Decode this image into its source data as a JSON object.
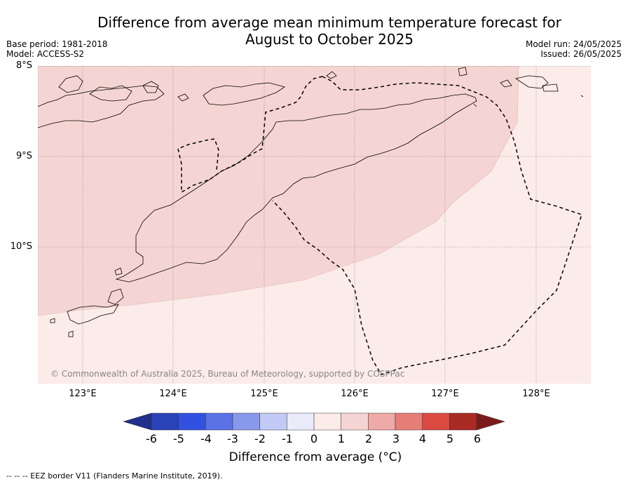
{
  "header": {
    "title_line1": "Difference from average mean minimum temperature forecast for",
    "title_line2": "August to October 2025",
    "base_period": "Base period: 1981-2018",
    "model": "Model: ACCESS-S2",
    "model_run": "Model run: 24/05/2025",
    "issued": "Issued: 26/05/2025"
  },
  "map": {
    "lat_labels": [
      "8°S",
      "9°S",
      "10°S"
    ],
    "lon_labels": [
      "123°E",
      "124°E",
      "125°E",
      "126°E",
      "127°E",
      "128°E"
    ],
    "copyright": "© Commonwealth of Australia 2025, Bureau of Meteorology, supported by COSPPac",
    "colors": {
      "band_0_1": "#fbebe9",
      "band_1_2": "#f5d5d3",
      "coastline": "#000000",
      "eez": "#000000",
      "grid": "#777777"
    }
  },
  "colorbar": {
    "ticks": [
      "-6",
      "-5",
      "-4",
      "-3",
      "-2",
      "-1",
      "0",
      "1",
      "2",
      "3",
      "4",
      "5",
      "6"
    ],
    "colors": [
      "#1f2f8a",
      "#2a42b8",
      "#3351e0",
      "#5b71e6",
      "#8899ec",
      "#c1c9f4",
      "#ebecfb",
      "#fbebe9",
      "#f5d5d3",
      "#eeaaa6",
      "#e67e78",
      "#db4a40",
      "#aa2a24",
      "#7a1c1a"
    ],
    "label": "Difference from average (°C)"
  },
  "footer": {
    "legend": "--  --  -- EEZ border V11 (Flanders Marine Institute, 2019)."
  }
}
